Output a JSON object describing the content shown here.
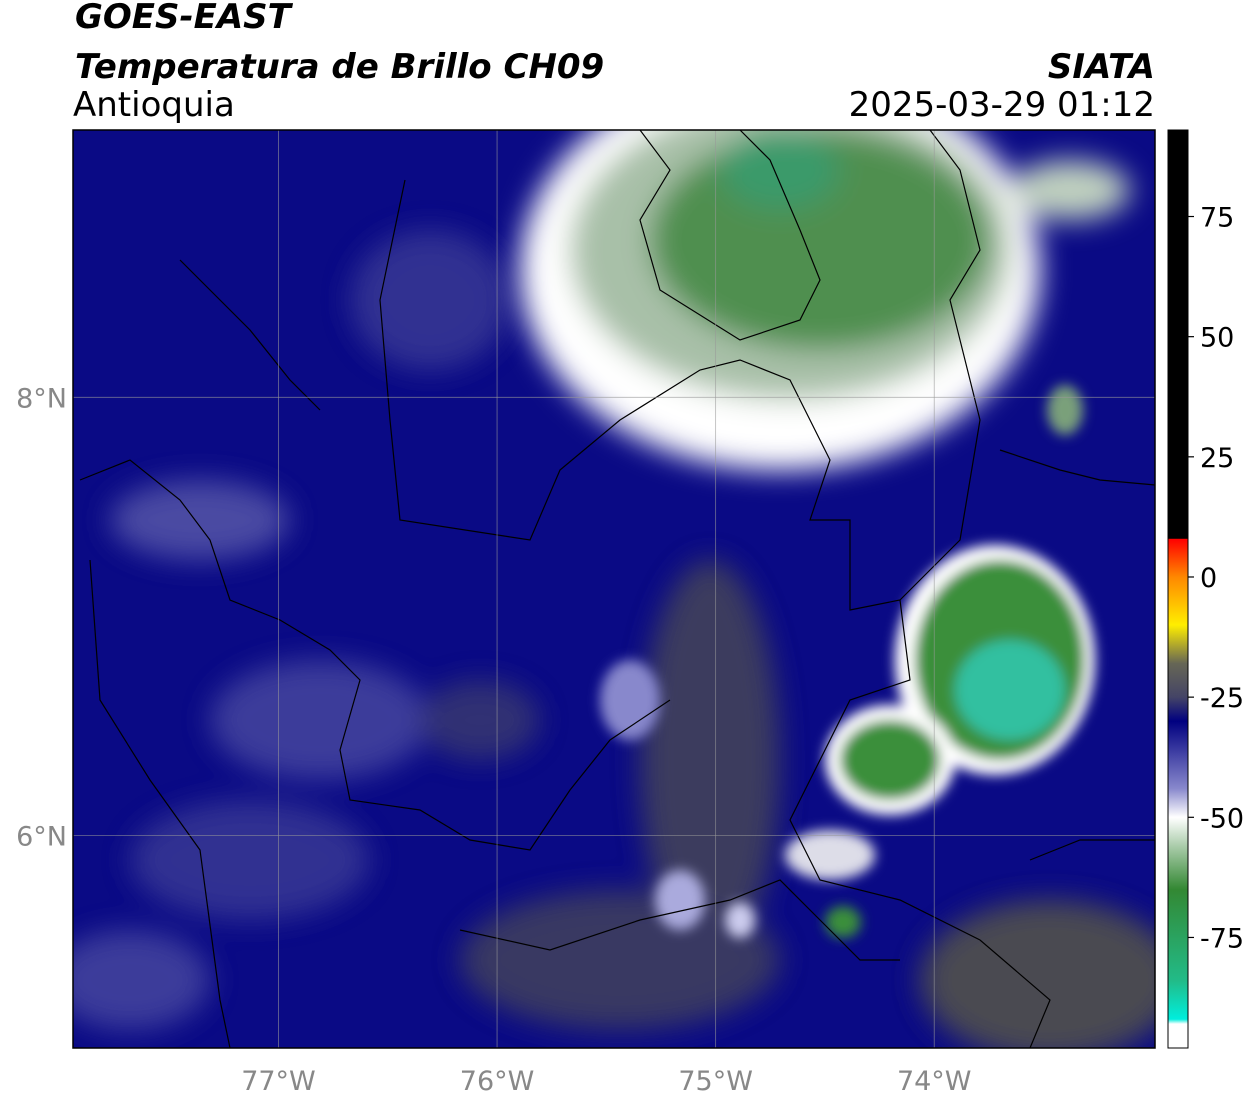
{
  "header": {
    "product": "GOES-EAST",
    "title": "Temperatura de Brillo CH09",
    "region": "Antioquia",
    "source": "SIATA",
    "datetime": "2025-03-29 01:12"
  },
  "map": {
    "xlim": [
      -77.94,
      -72.99
    ],
    "ylim": [
      5.03,
      9.22
    ],
    "xticks": [
      {
        "value": -77,
        "label": "77°W"
      },
      {
        "value": -76,
        "label": "76°W"
      },
      {
        "value": -75,
        "label": "75°W"
      },
      {
        "value": -74,
        "label": "74°W"
      }
    ],
    "yticks": [
      {
        "value": 6,
        "label": "6°N"
      },
      {
        "value": 8,
        "label": "8°N"
      }
    ],
    "grid": true
  },
  "colorbar": {
    "clim": [
      -98,
      93
    ],
    "ticks": [
      75,
      50,
      25,
      0,
      -25,
      -50,
      -75
    ],
    "colormap": [
      {
        "value": 93,
        "color": "#000000"
      },
      {
        "value": 8,
        "color": "#000000"
      },
      {
        "value": 7.9,
        "color": "#ff0000"
      },
      {
        "value": 0,
        "color": "#ff8800"
      },
      {
        "value": -10,
        "color": "#ffee00"
      },
      {
        "value": -18,
        "color": "#666655"
      },
      {
        "value": -25,
        "color": "#444466"
      },
      {
        "value": -30,
        "color": "#000080"
      },
      {
        "value": -44,
        "color": "#8888cc"
      },
      {
        "value": -50,
        "color": "#ffffff"
      },
      {
        "value": -56,
        "color": "#aaccaa"
      },
      {
        "value": -65,
        "color": "#338833"
      },
      {
        "value": -84,
        "color": "#22bb88"
      },
      {
        "value": -92,
        "color": "#00eedd"
      },
      {
        "value": -93,
        "color": "#ffffff"
      },
      {
        "value": -98,
        "color": "#ffffff"
      }
    ]
  }
}
